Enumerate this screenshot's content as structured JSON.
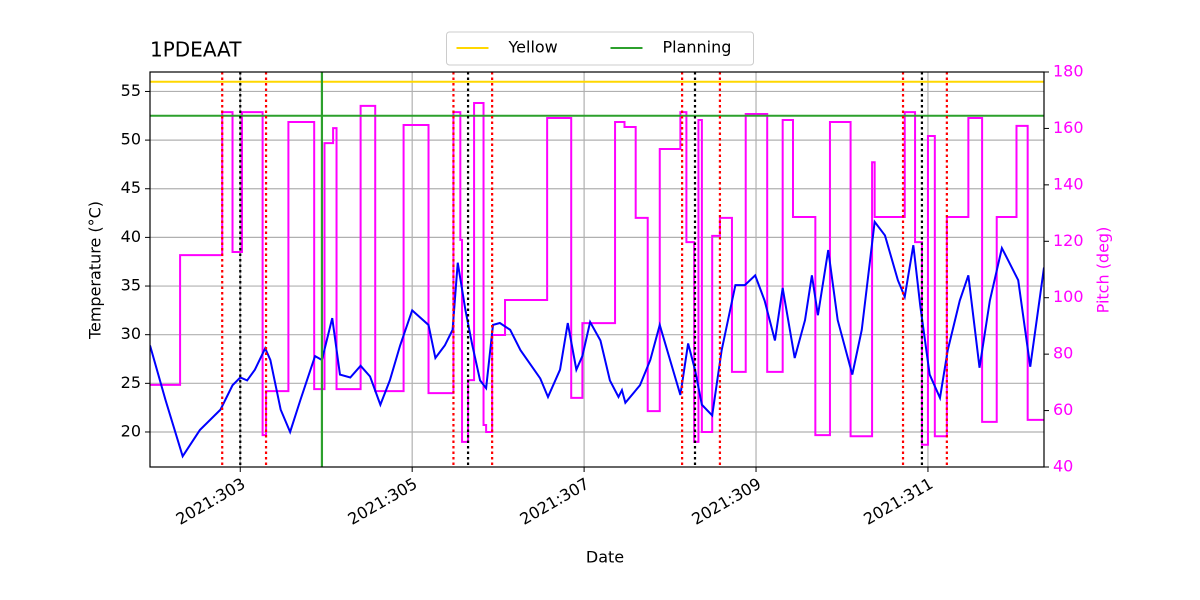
{
  "chart_data": {
    "type": "line",
    "title": "1PDEAAT",
    "xlabel": "Date",
    "ylabel": "Temperature (°C)",
    "y2label": "Pitch (deg)",
    "y2color": "#ff00ff",
    "grid": true,
    "legend": "upper center",
    "xlim": [
      301.95,
      312.35
    ],
    "ylim": [
      16.4,
      57
    ],
    "y2lim": [
      40,
      180
    ],
    "xticks": [
      {
        "value": 303,
        "label": "2021:303"
      },
      {
        "value": 305,
        "label": "2021:305"
      },
      {
        "value": 307,
        "label": "2021:307"
      },
      {
        "value": 309,
        "label": "2021:309"
      },
      {
        "value": 311,
        "label": "2021:311"
      }
    ],
    "yticks": [
      20,
      25,
      30,
      35,
      40,
      45,
      50,
      55
    ],
    "y2ticks": [
      40,
      60,
      80,
      100,
      120,
      140,
      160,
      180
    ],
    "hlines": [
      {
        "name": "Yellow",
        "color": "#ffd700",
        "value": 56
      },
      {
        "name": "Planning",
        "color": "#2ca02c",
        "value": 52.5
      }
    ],
    "vlines": [
      {
        "color": "#ff0000",
        "style": "dotted",
        "x": [
          302.79,
          303.3,
          305.48,
          305.93,
          308.14,
          308.58,
          310.71,
          311.22
        ]
      },
      {
        "color": "#000000",
        "style": "dotted",
        "x": [
          303.0,
          305.65,
          308.29,
          310.93
        ]
      },
      {
        "color": "#2ca02c",
        "style": "solid",
        "x": [
          303.95
        ]
      }
    ],
    "series": [
      {
        "color": "#ff00ff",
        "axis": "y2",
        "drawstyle": "steps-post",
        "x": [
          301.95,
          302.3,
          302.79,
          302.91,
          303.02,
          303.26,
          303.3,
          303.56,
          303.86,
          303.98,
          304.08,
          304.12,
          304.4,
          304.57,
          304.9,
          305.19,
          305.48,
          305.56,
          305.58,
          305.65,
          305.72,
          305.83,
          305.86,
          305.93,
          306.08,
          306.57,
          306.85,
          306.98,
          307.36,
          307.47,
          307.6,
          307.74,
          307.88,
          308.12,
          308.19,
          308.28,
          308.33,
          308.37,
          308.49,
          308.58,
          308.72,
          308.88,
          309.13,
          309.31,
          309.43,
          309.69,
          309.86,
          310.1,
          310.35,
          310.38,
          310.73,
          310.85,
          310.93,
          311.0,
          311.08,
          311.22,
          311.47,
          311.63,
          311.8,
          312.03,
          312.16,
          312.35
        ],
        "values": [
          69.1,
          115.1,
          165.8,
          116.2,
          165.8,
          51.3,
          66.9,
          162.3,
          67.6,
          154.8,
          160.1,
          67.6,
          168.0,
          66.9,
          161.2,
          66.2,
          165.8,
          120.5,
          48.9,
          70.8,
          169.0,
          54.9,
          52.4,
          86.8,
          99.2,
          163.7,
          64.5,
          91.0,
          162.3,
          160.5,
          128.3,
          59.8,
          152.7,
          165.8,
          119.7,
          48.9,
          163.0,
          52.4,
          121.9,
          128.3,
          73.7,
          165.1,
          73.7,
          163.0,
          128.6,
          51.3,
          162.3,
          50.9,
          148.0,
          128.6,
          165.8,
          119.7,
          47.9,
          157.3,
          50.9,
          128.6,
          163.7,
          56.0,
          128.6,
          160.9,
          56.7,
          56.7
        ]
      },
      {
        "color": "#0000ff",
        "x": [
          301.95,
          302.13,
          302.33,
          302.53,
          302.77,
          302.91,
          303.0,
          303.08,
          303.17,
          303.29,
          303.35,
          303.47,
          303.58,
          303.7,
          303.87,
          303.95,
          304.07,
          304.16,
          304.28,
          304.4,
          304.51,
          304.63,
          304.74,
          304.86,
          305.0,
          305.19,
          305.27,
          305.38,
          305.47,
          305.53,
          305.62,
          305.7,
          305.79,
          305.86,
          305.94,
          306.02,
          306.14,
          306.26,
          306.49,
          306.58,
          306.72,
          306.81,
          306.91,
          306.98,
          307.07,
          307.19,
          307.3,
          307.4,
          307.44,
          307.48,
          307.65,
          307.77,
          307.88,
          308.0,
          308.12,
          308.21,
          308.29,
          308.37,
          308.49,
          308.6,
          308.76,
          308.87,
          308.99,
          309.1,
          309.22,
          309.31,
          309.45,
          309.57,
          309.65,
          309.72,
          309.84,
          309.95,
          310.12,
          310.23,
          310.38,
          310.5,
          310.65,
          310.73,
          310.83,
          310.91,
          311.02,
          311.14,
          311.23,
          311.37,
          311.47,
          311.6,
          311.72,
          311.86,
          311.93,
          312.05,
          312.19,
          312.35
        ],
        "values": [
          28.9,
          23.3,
          17.5,
          20.2,
          22.3,
          24.8,
          25.6,
          25.3,
          26.4,
          28.6,
          27.4,
          22.3,
          20.0,
          23.3,
          27.8,
          27.4,
          31.7,
          25.9,
          25.6,
          26.8,
          25.7,
          22.8,
          25.3,
          28.9,
          32.5,
          31.0,
          27.6,
          28.9,
          30.5,
          37.4,
          32.5,
          28.9,
          25.3,
          24.5,
          31.0,
          31.2,
          30.5,
          28.4,
          25.5,
          23.6,
          26.4,
          31.2,
          26.4,
          27.8,
          31.3,
          29.4,
          25.3,
          23.6,
          24.3,
          23.0,
          24.8,
          27.4,
          31.0,
          27.4,
          23.8,
          29.1,
          26.4,
          22.8,
          21.7,
          28.4,
          35.1,
          35.1,
          36.1,
          33.5,
          29.4,
          34.8,
          27.6,
          31.5,
          36.1,
          32.0,
          38.7,
          31.5,
          25.9,
          30.5,
          41.6,
          40.2,
          35.6,
          33.9,
          39.2,
          33.0,
          25.9,
          23.5,
          28.4,
          33.5,
          36.1,
          26.6,
          33.5,
          38.9,
          37.7,
          35.6,
          26.7,
          36.9
        ]
      }
    ]
  }
}
